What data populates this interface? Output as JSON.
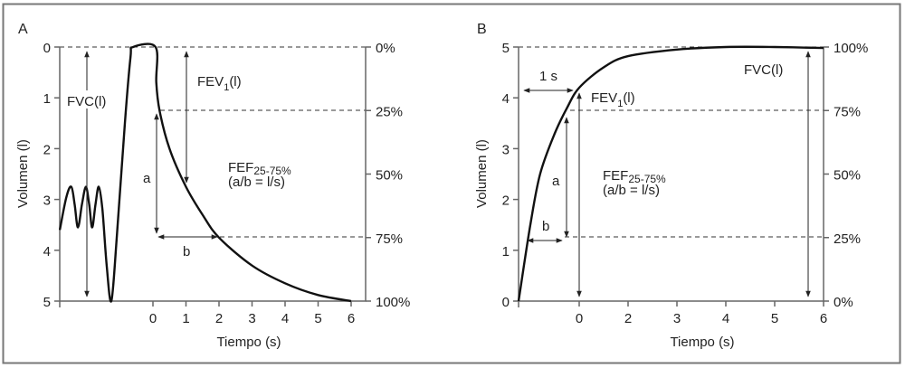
{
  "chart_data": [
    {
      "panel": "A",
      "type": "line",
      "xlabel": "Tiempo (s)",
      "ylabel": "Volumen (l)",
      "x_ticks": [
        "0",
        "1",
        "2",
        "3",
        "4",
        "5",
        "6"
      ],
      "y_ticks": [
        "0",
        "1",
        "2",
        "3",
        "4",
        "5"
      ],
      "y_inverted": true,
      "ylim": [
        0,
        5
      ],
      "right_ticks": [
        "0%",
        "25%",
        "50%",
        "75%",
        "100%"
      ],
      "curve": [
        [
          -2.82,
          3.6
        ],
        [
          -2.62,
          2.95
        ],
        [
          -2.47,
          2.75
        ],
        [
          -2.37,
          3.1
        ],
        [
          -2.27,
          3.55
        ],
        [
          -2.15,
          3.1
        ],
        [
          -2.03,
          2.75
        ],
        [
          -1.93,
          3.1
        ],
        [
          -1.84,
          3.55
        ],
        [
          -1.74,
          3.1
        ],
        [
          -1.64,
          2.75
        ],
        [
          -1.53,
          3.2
        ],
        [
          -1.4,
          4.3
        ],
        [
          -1.26,
          5
        ],
        [
          -1.1,
          3.8
        ],
        [
          -0.85,
          1.5
        ],
        [
          -0.68,
          0.2
        ],
        [
          -0.6,
          0.0
        ],
        [
          0.08,
          0.0
        ],
        [
          0.1,
          0.7
        ],
        [
          0.2,
          1.25
        ],
        [
          0.5,
          2.0
        ],
        [
          1,
          2.75
        ],
        [
          1.5,
          3.3
        ],
        [
          2,
          3.75
        ],
        [
          3,
          4.3
        ],
        [
          4,
          4.65
        ],
        [
          5,
          4.88
        ],
        [
          6,
          5
        ]
      ],
      "annotations": {
        "fvc": "FVC(l)",
        "fev1_main": "FEV",
        "fev1_sub": "1",
        "fev1_unit": "(l)",
        "a": "a",
        "b": "b",
        "fef_main": "FEF",
        "fef_sub": "25-75%",
        "fef_formula": "(a/b = l/s)"
      }
    },
    {
      "panel": "B",
      "type": "line",
      "xlabel": "Tiempo (s)",
      "ylabel": "Volumen (l)",
      "x_ticks": [
        "0",
        "2",
        "3",
        "4",
        "5",
        "6"
      ],
      "y_ticks": [
        "0",
        "1",
        "2",
        "3",
        "4",
        "5"
      ],
      "ylim": [
        0,
        5
      ],
      "right_ticks": [
        "0%",
        "25%",
        "50%",
        "75%",
        "100%"
      ],
      "curve": [
        [
          -1.24,
          0
        ],
        [
          -1.0,
          1.5
        ],
        [
          -0.8,
          2.5
        ],
        [
          -0.5,
          3.3
        ],
        [
          -0.25,
          3.8
        ],
        [
          0,
          4.2
        ],
        [
          0.5,
          4.6
        ],
        [
          1,
          4.82
        ],
        [
          2,
          4.95
        ],
        [
          3,
          5
        ],
        [
          4,
          5
        ],
        [
          5,
          4.98
        ]
      ],
      "annotations": {
        "one_s": "1 s",
        "fvc": "FVC(l)",
        "fev1_main": "FEV",
        "fev1_sub": "1",
        "fev1_unit": "(l)",
        "a": "a",
        "b": "b",
        "fef_main": "FEF",
        "fef_sub": "25-75%",
        "fef_formula": "(a/b = l/s)"
      }
    }
  ]
}
